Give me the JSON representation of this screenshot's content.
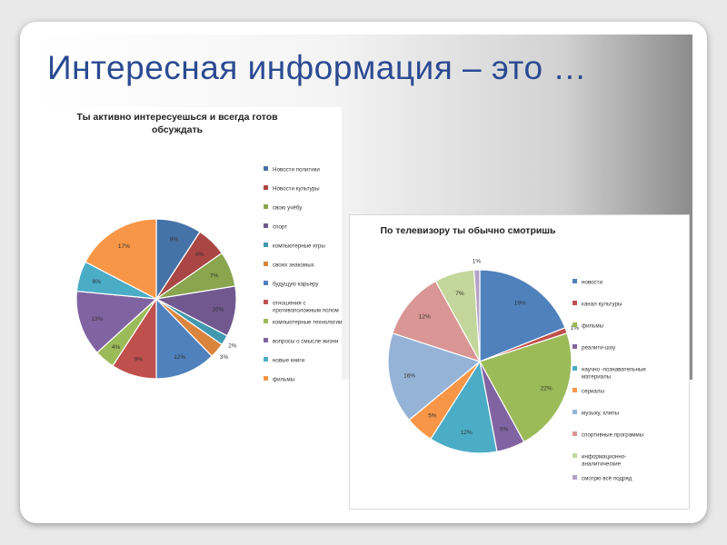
{
  "slide": {
    "title": "Интересная информация – это …"
  },
  "chart_data": [
    {
      "type": "pie",
      "title": "Ты активно интересуешься и всегда готов обсуждать",
      "title_lines": [
        "Ты активно интересуешься и всегда готов",
        "обсуждать"
      ],
      "legend_position": "right",
      "slices": [
        {
          "label": "Новости политики",
          "value": 9,
          "display": "9%",
          "color": "#4572a7"
        },
        {
          "label": "Новости культуры",
          "value": 6,
          "display": "6%",
          "color": "#aa4643"
        },
        {
          "label": "свою учёбу",
          "value": 7,
          "display": "7%",
          "color": "#89a54e"
        },
        {
          "label": "спорт",
          "value": 10,
          "display": "10%",
          "color": "#71588f"
        },
        {
          "label": "компьютерные игры",
          "value": 2,
          "display": "2%",
          "color": "#4198af"
        },
        {
          "label": "своих знакомых",
          "value": 3,
          "display": "3%",
          "color": "#db843d"
        },
        {
          "label": "будущую карьеру",
          "value": 12,
          "display": "12%",
          "color": "#4f81bd"
        },
        {
          "label": "отношения с противоположным полом",
          "value": 9,
          "display": "9%",
          "color": "#c0504d",
          "legend_lines": [
            "отношения с",
            "противоположным полом"
          ]
        },
        {
          "label": "компьютерные технологии",
          "value": 4,
          "display": "4%",
          "color": "#9bbb59"
        },
        {
          "label": "вопросы о смысле жизни",
          "value": 13,
          "display": "13%",
          "color": "#8064a2"
        },
        {
          "label": "новые книги",
          "value": 6,
          "display": "6%",
          "color": "#4bacc6"
        },
        {
          "label": "фильмы",
          "value": 17,
          "display": "17%",
          "color": "#f79646"
        }
      ]
    },
    {
      "type": "pie",
      "title": "По телевизору ты обычно смотришь",
      "title_lines": [
        "По телевизору ты обычно смотришь"
      ],
      "legend_position": "right",
      "slices": [
        {
          "label": "новости",
          "value": 19,
          "display": "19%",
          "color": "#4f81bd"
        },
        {
          "label": "канал культуры",
          "value": 1,
          "display": "1%",
          "color": "#c0504d"
        },
        {
          "label": "фильмы",
          "value": 22,
          "display": "22%",
          "color": "#9bbb59"
        },
        {
          "label": "реалити-шоу",
          "value": 5,
          "display": "5%",
          "color": "#8064a2"
        },
        {
          "label": "научно-познавательные материалы",
          "value": 12,
          "display": "12%",
          "color": "#4bacc6",
          "legend_lines": [
            "научно -познавательные",
            "материалы"
          ]
        },
        {
          "label": "сериалы",
          "value": 5,
          "display": "5%",
          "color": "#f79646"
        },
        {
          "label": "музыку, клипы",
          "value": 16,
          "display": "16%",
          "color": "#95b3d7"
        },
        {
          "label": "спортивные программы",
          "value": 12,
          "display": "12%",
          "color": "#d99694"
        },
        {
          "label": "информационно-аналитические",
          "value": 7,
          "display": "7%",
          "color": "#c3d69b",
          "legend_lines": [
            "информационно-",
            "аналитические"
          ]
        },
        {
          "label": "смотрю всё подряд",
          "value": 1,
          "display": "1%",
          "color": "#b3a2c7"
        }
      ]
    }
  ]
}
